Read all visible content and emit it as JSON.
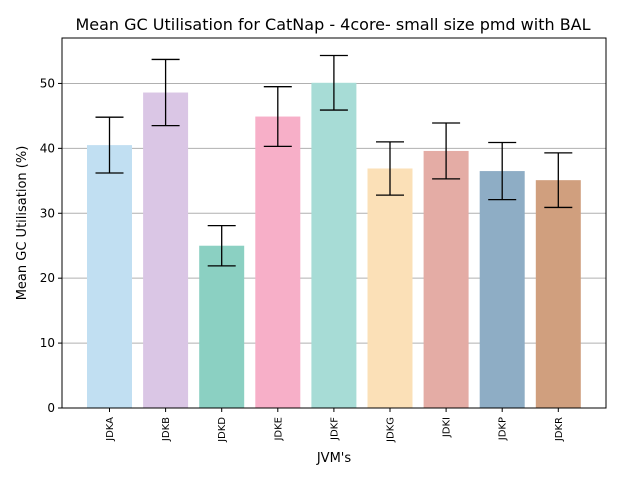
{
  "chart_data": {
    "type": "bar",
    "title": "Mean GC Utilisation for CatNap - 4core- small size pmd with BAL",
    "xlabel": "JVM's",
    "ylabel": "Mean GC Utilisation (%)",
    "categories": [
      "JDKA",
      "JDKB",
      "JDKD",
      "JDKE",
      "JDKF",
      "JDKG",
      "JDKI",
      "JDKP",
      "JDKR"
    ],
    "values": [
      40.5,
      48.6,
      25.0,
      44.9,
      50.1,
      36.9,
      39.6,
      36.5,
      35.1
    ],
    "errors": [
      4.3,
      5.1,
      3.1,
      4.6,
      4.2,
      4.1,
      4.3,
      4.4,
      4.2
    ],
    "ylim": [
      0,
      57
    ],
    "yticks": [
      0,
      10,
      20,
      30,
      40,
      50
    ],
    "grid": "horizontal",
    "colors": [
      "#c1dff2",
      "#dac6e5",
      "#8bd0c2",
      "#f7afc8",
      "#a7dcd6",
      "#fbe0b7",
      "#e4aca5",
      "#8eadc5",
      "#d09f7e"
    ]
  }
}
